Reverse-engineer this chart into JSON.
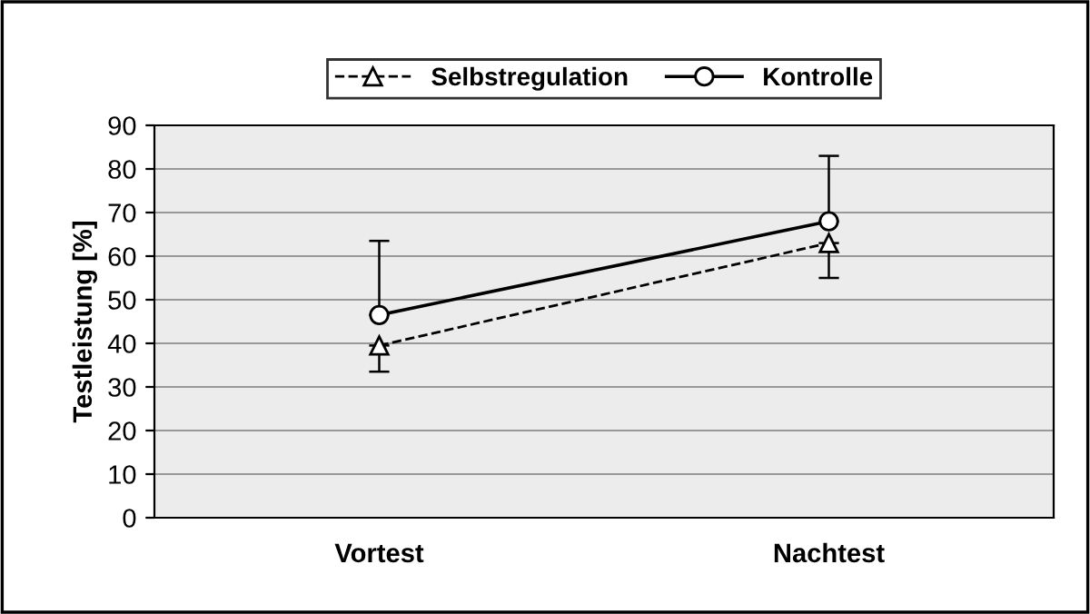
{
  "chart_data": {
    "type": "line",
    "ylabel": "Testleistung [%]",
    "categories": [
      "Vortest",
      "Nachtest"
    ],
    "series": [
      {
        "name": "Selbstregulation",
        "color": "#000000",
        "values": [
          39.5,
          63
        ],
        "errors": [
          [
            33.5,
            39.5
          ],
          [
            55,
            63
          ]
        ],
        "marker": "triangle",
        "line_style": "dashed"
      },
      {
        "name": "Kontrolle",
        "color": "#000000",
        "values": [
          46.5,
          68
        ],
        "errors": [
          [
            46.5,
            63.5
          ],
          [
            68,
            83
          ]
        ],
        "marker": "circle",
        "line_style": "solid"
      }
    ],
    "ylim": [
      0,
      90
    ],
    "yticks": [
      0,
      10,
      20,
      30,
      40,
      50,
      60,
      70,
      80,
      90
    ],
    "grid": "y",
    "legend": "top"
  }
}
